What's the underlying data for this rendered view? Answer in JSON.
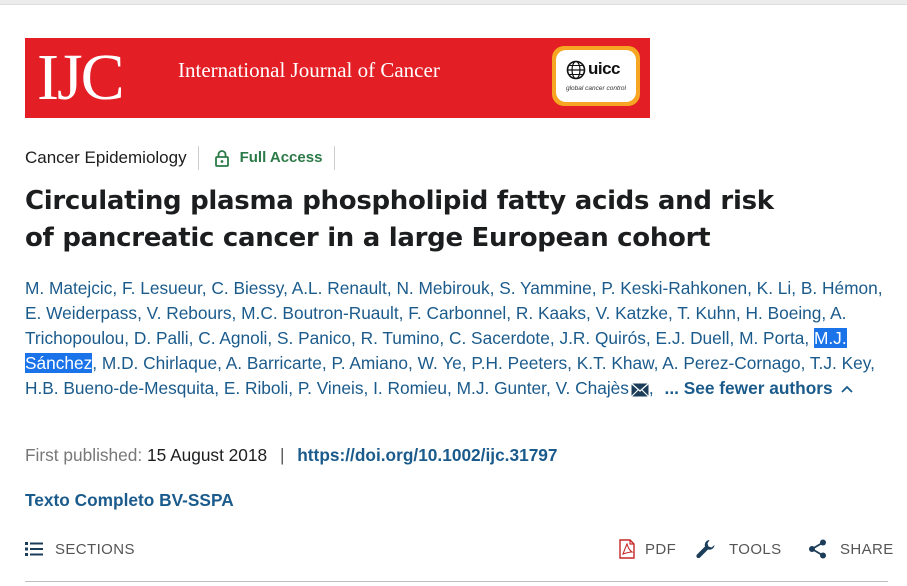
{
  "journal": {
    "logo_text": "IJC",
    "name": "International Journal of Cancer",
    "partner_logo_text": "uicc",
    "partner_logo_sub": "global cancer control",
    "colors": {
      "banner": "#e31e25",
      "partner_badge": "#f6a623"
    }
  },
  "article": {
    "category": "Cancer Epidemiology",
    "access": "Full Access",
    "title": "Circulating plasma phospholipid fatty acids and risk of pancreatic cancer in a large European cohort",
    "authors": [
      "M. Matejcic",
      "F. Lesueur",
      "C. Biessy",
      "A.L. Renault",
      "N. Mebirouk",
      "S. Yammine",
      "P. Keski-Rahkonen",
      "K. Li",
      "B. Hémon",
      "E. Weiderpass",
      "V. Rebours",
      "M.C. Boutron-Ruault",
      "F. Carbonnel",
      "R. Kaaks",
      "V. Katzke",
      "T. Kuhn",
      "H. Boeing",
      "A. Trichopoulou",
      "D. Palli",
      "C. Agnoli",
      "S. Panico",
      "R. Tumino",
      "C. Sacerdote",
      "J.R. Quirós",
      "E.J. Duell",
      "M. Porta",
      "M.J. Sánchez",
      "M.D. Chirlaque",
      "A. Barricarte",
      "P. Amiano",
      "W. Ye",
      "P.H. Peeters",
      "K.T. Khaw",
      "A. Perez-Cornago",
      "T.J. Key",
      "H.B. Bueno-de-Mesquita",
      "E. Riboli",
      "P. Vineis",
      "I. Romieu",
      "M.J. Gunter",
      "V. Chajès"
    ],
    "highlighted_author": "M.J. Sánchez",
    "fewer_authors_label": "... See fewer authors",
    "published_label": "First published:",
    "published_date": "15 August 2018",
    "separator": "|",
    "doi": "https://doi.org/10.1002/ijc.31797",
    "fulltext_link": "Texto Completo BV-SSPA",
    "link_color": "#1b5b8c",
    "access_color": "#2b7a48"
  },
  "toolbar": {
    "sections_label": "SECTIONS",
    "pdf_label": "PDF",
    "tools_label": "TOOLS",
    "share_label": "SHARE"
  }
}
